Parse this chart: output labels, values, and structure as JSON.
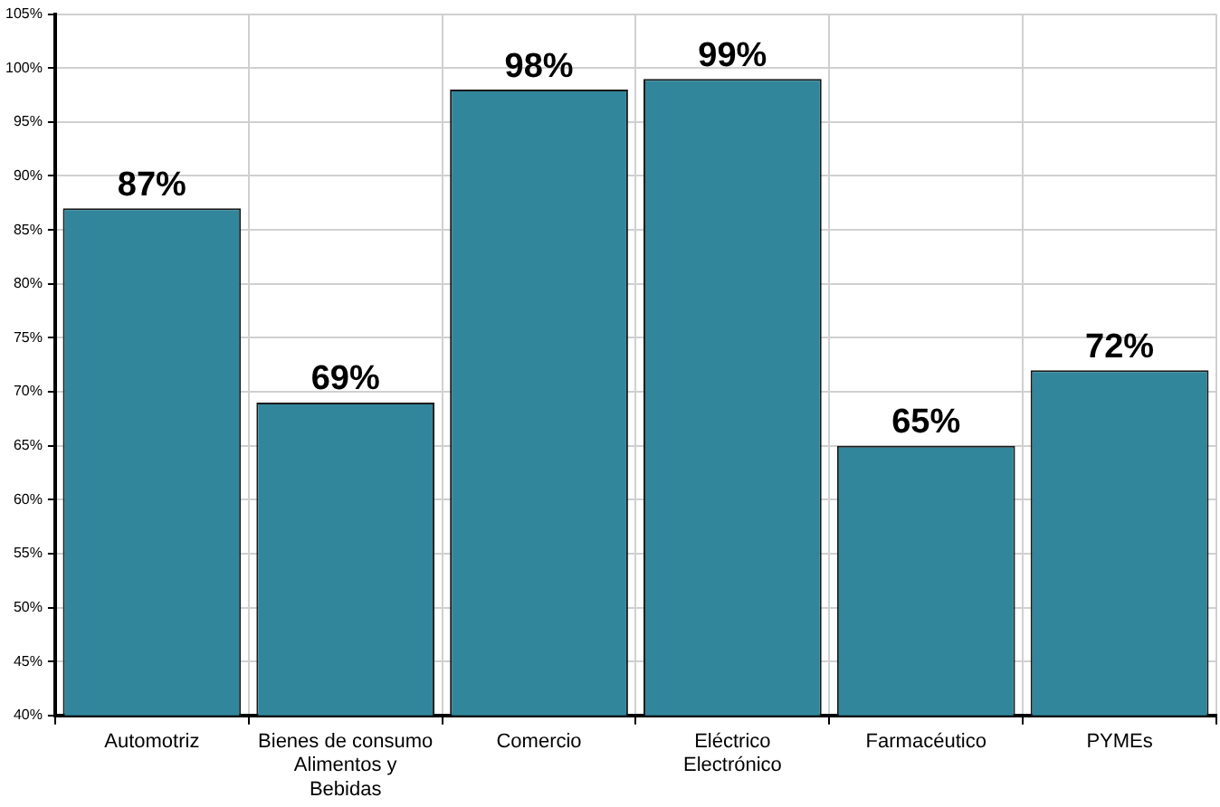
{
  "chart_data": {
    "type": "bar",
    "categories": [
      "Automotriz",
      "Bienes de consumo\nAlimentos y\nBebidas",
      "Comercio",
      "Eléctrico\nElectrónico",
      "Farmacéutico",
      "PYMEs"
    ],
    "values": [
      87,
      69,
      98,
      99,
      65,
      72
    ],
    "value_labels": [
      "87%",
      "69%",
      "98%",
      "99%",
      "65%",
      "72%"
    ],
    "color": "#31869b",
    "ylim": [
      40,
      105
    ],
    "yticks": [
      {
        "value": 40,
        "label": "40%"
      },
      {
        "value": 45,
        "label": "45%"
      },
      {
        "value": 50,
        "label": "50%"
      },
      {
        "value": 55,
        "label": "55%"
      },
      {
        "value": 60,
        "label": "60%"
      },
      {
        "value": 65,
        "label": "65%"
      },
      {
        "value": 70,
        "label": "70%"
      },
      {
        "value": 75,
        "label": "75%"
      },
      {
        "value": 80,
        "label": "80%"
      },
      {
        "value": 85,
        "label": "85%"
      },
      {
        "value": 90,
        "label": "90%"
      },
      {
        "value": 95,
        "label": "95%"
      },
      {
        "value": 100,
        "label": "100%"
      },
      {
        "value": 105,
        "label": "105%"
      }
    ],
    "grid": true
  }
}
